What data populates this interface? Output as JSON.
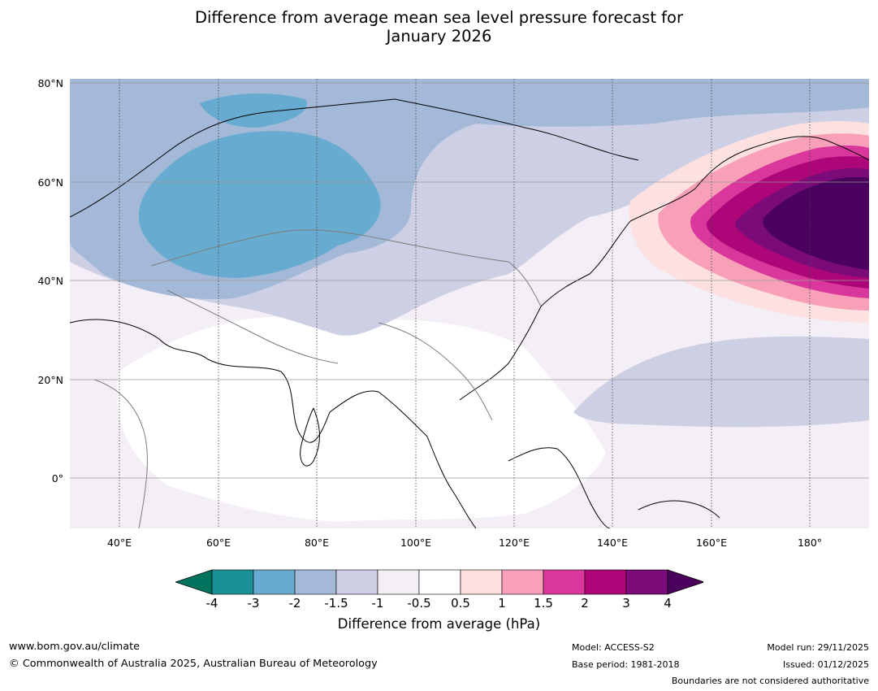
{
  "title_line1": "Difference from average mean sea level pressure forecast for",
  "title_line2": "January 2026",
  "map": {
    "lat_labels": [
      "80°N",
      "60°N",
      "40°N",
      "20°N",
      "0°"
    ],
    "lon_labels": [
      "40°E",
      "60°E",
      "80°E",
      "100°E",
      "120°E",
      "140°E",
      "160°E",
      "180°"
    ],
    "extent": {
      "lon_min": 30,
      "lon_max": 192,
      "lat_min": -10,
      "lat_max": 80
    }
  },
  "colorbar": {
    "ticks": [
      "-4",
      "-3",
      "-2",
      "-1.5",
      "-1",
      "-0.5",
      "0.5",
      "1",
      "1.5",
      "2",
      "3",
      "4"
    ],
    "colors": [
      "#1a8f96",
      "#68abd0",
      "#a4b9d8",
      "#cdcfe4",
      "#f4eef6",
      "#ffffff",
      "#fde0e0",
      "#f7a0b8",
      "#d9379c",
      "#ad0678",
      "#7b0b79"
    ],
    "under_color": "#00735e",
    "over_color": "#4b015e",
    "label": "Difference from average (hPa)"
  },
  "footer": {
    "website": "www.bom.gov.au/climate",
    "copyright": "© Commonwealth of Australia 2025, Australian Bureau of Meteorology",
    "model": "Model: ACCESS-S2",
    "base_period": "Base period: 1981-2018",
    "model_run": "Model run: 29/11/2025",
    "issued": "Issued: 01/12/2025",
    "disclaimer": "Boundaries are not considered authoritative"
  }
}
